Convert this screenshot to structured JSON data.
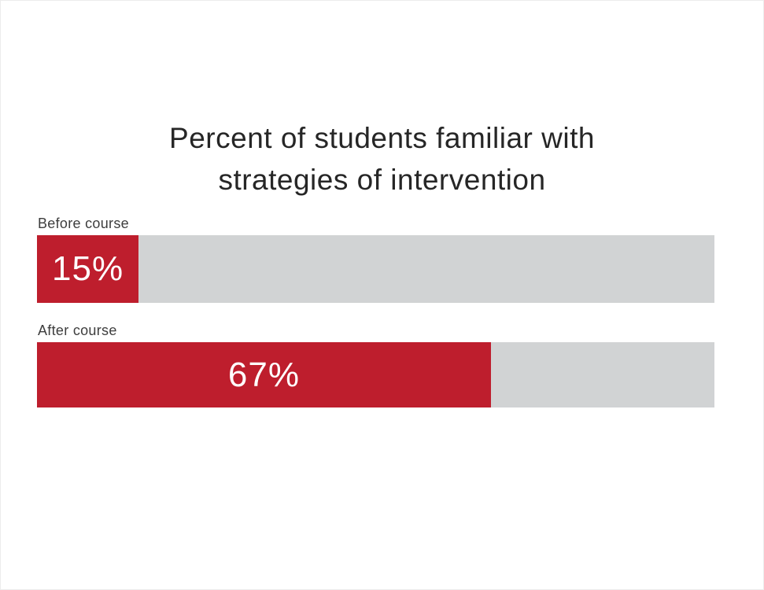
{
  "title": {
    "line1": "Percent of students familiar with",
    "line2": "strategies of intervention"
  },
  "bars": [
    {
      "label": "Before course",
      "value": 15,
      "value_label": "15%"
    },
    {
      "label": "After course",
      "value": 67,
      "value_label": "67%"
    }
  ],
  "colors": {
    "bar_fill": "#be1e2d",
    "bar_track": "#d1d3d4",
    "title_text": "#262626",
    "label_text": "#3d3d3d",
    "value_text": "#ffffff"
  },
  "chart_data": {
    "type": "bar",
    "orientation": "horizontal",
    "title": "Percent of students familiar with strategies of intervention",
    "categories": [
      "Before course",
      "After course"
    ],
    "values": [
      15,
      67
    ],
    "value_labels": [
      "15%",
      "67%"
    ],
    "xlabel": "",
    "ylabel": "",
    "xlim": [
      0,
      100
    ],
    "grid": false,
    "legend": "none",
    "bar_color": "#be1e2d",
    "track_color": "#d1d3d4"
  }
}
